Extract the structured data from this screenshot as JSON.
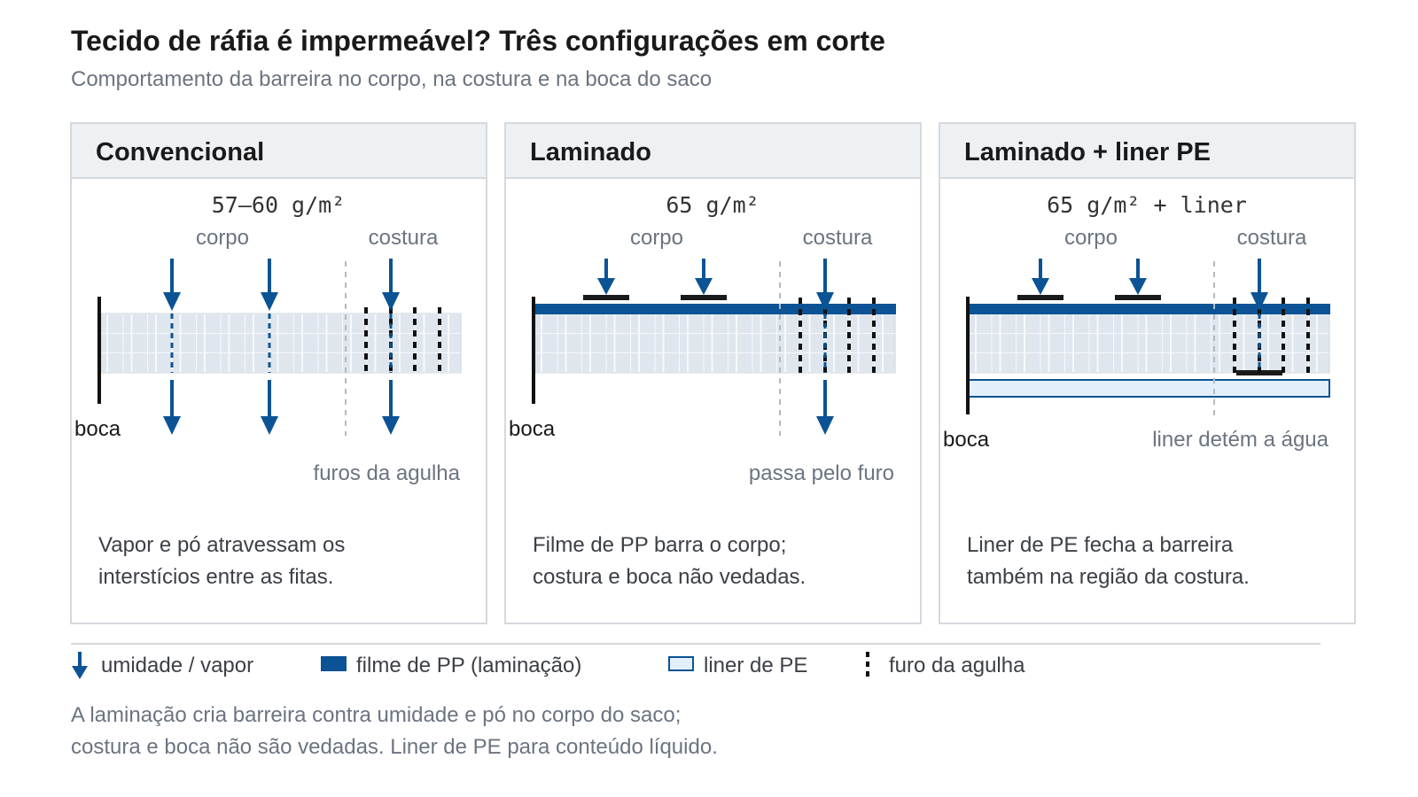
{
  "title": "Tecido de ráfia é impermeável? Três configurações em corte",
  "subtitle": "Comportamento da barreira no corpo, na costura e na boca do saco",
  "colors": {
    "moisture": "#0b5394",
    "pp_film": "#0b5394",
    "liner_fill": "#e3f0fb",
    "fabric_fill": "#dfe6ee",
    "needle_hole": "#111111",
    "panel_header": "#eef1f4"
  },
  "panels": [
    {
      "title": "Convencional",
      "grammage": "57–60 g/m²",
      "label_body": "corpo",
      "label_seam": "costura",
      "label_mouth": "boca",
      "note": "furos da agulha",
      "desc_lines": [
        "Vapor e pó atravessam os",
        "interstícios entre as fitas."
      ]
    },
    {
      "title": "Laminado",
      "grammage": "65 g/m²",
      "label_body": "corpo",
      "label_seam": "costura",
      "label_mouth": "boca",
      "note": "passa pelo furo",
      "desc_lines": [
        "Filme de PP barra o corpo;",
        "costura e boca não vedadas."
      ]
    },
    {
      "title": "Laminado + liner PE",
      "grammage": "65 g/m² + liner",
      "label_body": "corpo",
      "label_seam": "costura",
      "label_mouth": "boca",
      "note": "liner detém a água",
      "desc_lines": [
        "Liner de PE fecha a barreira",
        "também na região da costura."
      ]
    }
  ],
  "legend": {
    "moisture": "umidade / vapor",
    "pp_film": "filme de PP (laminação)",
    "liner": "liner de PE",
    "needle": "furo da agulha"
  },
  "footnote_lines": [
    "A laminação cria barreira contra umidade e pó no corpo do saco;",
    "costura e boca não são vedadas. Liner de PE para conteúdo líquido."
  ]
}
